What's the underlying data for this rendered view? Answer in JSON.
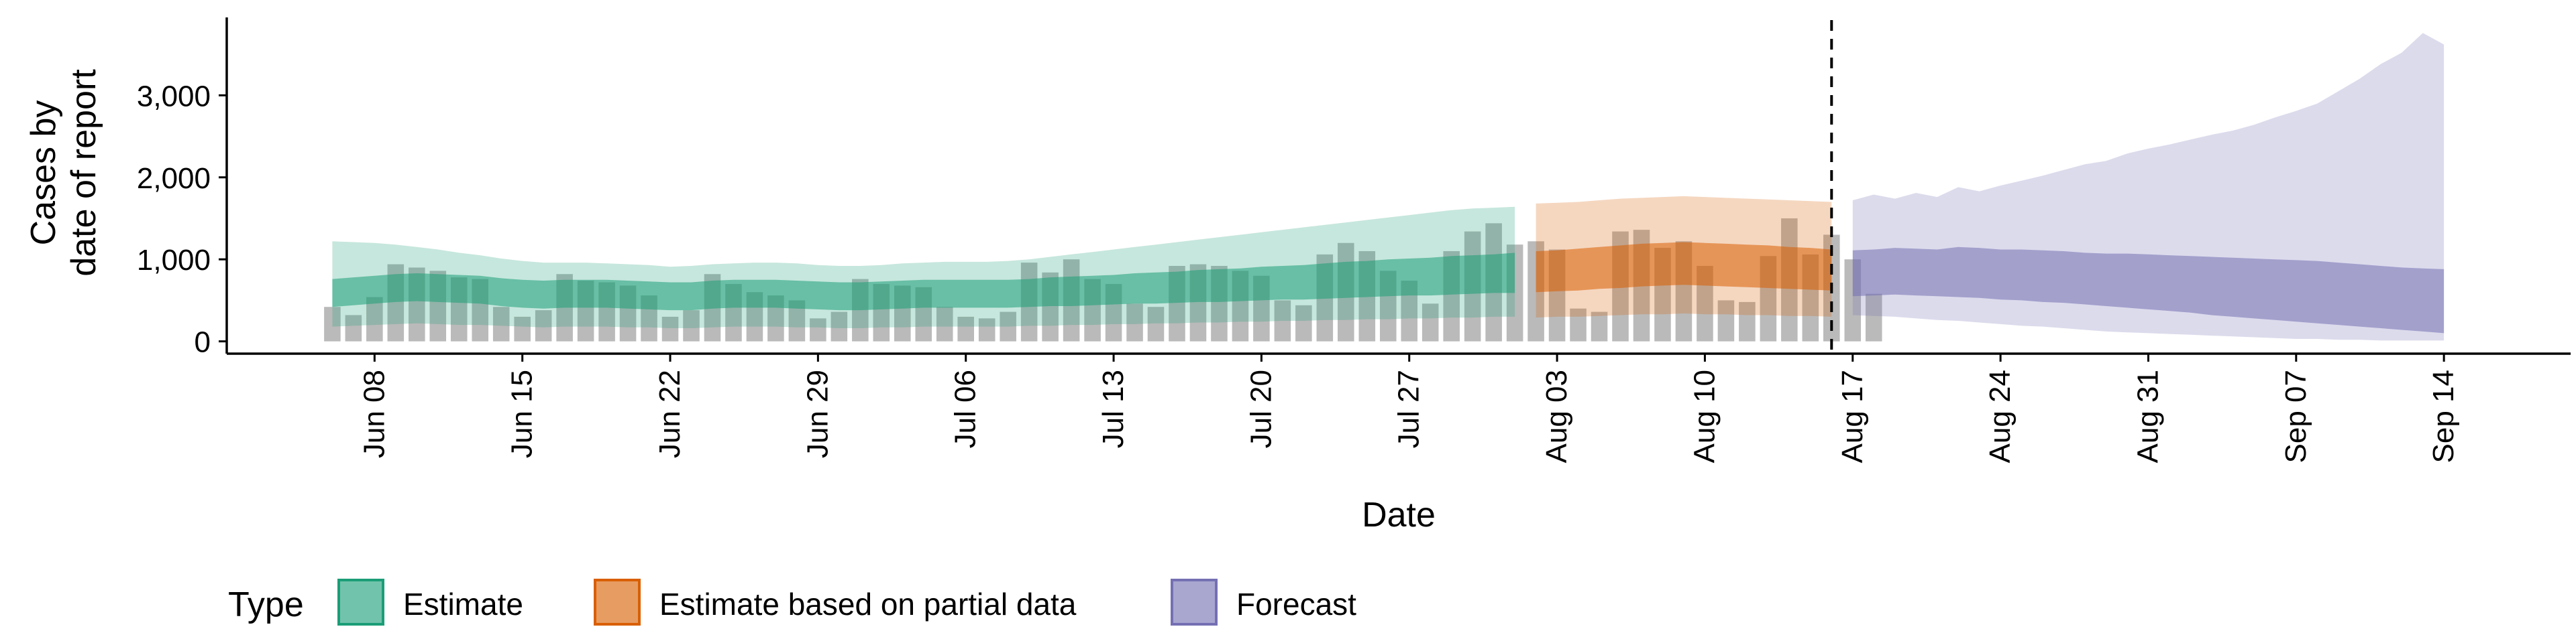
{
  "chart_data": {
    "type": "area",
    "title": "",
    "xlabel": "Date",
    "ylabel_lines": [
      "Cases by",
      "date of report"
    ],
    "ylim": [
      -150,
      3950
    ],
    "y_ticks": [
      {
        "value": 0,
        "label": "0"
      },
      {
        "value": 1000,
        "label": "1,000"
      },
      {
        "value": 2000,
        "label": "2,000"
      },
      {
        "value": 3000,
        "label": "3,000"
      }
    ],
    "x_domain": [
      "2020-06-01",
      "2020-09-20"
    ],
    "x_ticks": [
      {
        "date": "2020-06-08",
        "label": "Jun 08"
      },
      {
        "date": "2020-06-15",
        "label": "Jun 15"
      },
      {
        "date": "2020-06-22",
        "label": "Jun 22"
      },
      {
        "date": "2020-06-29",
        "label": "Jun 29"
      },
      {
        "date": "2020-07-06",
        "label": "Jul 06"
      },
      {
        "date": "2020-07-13",
        "label": "Jul 13"
      },
      {
        "date": "2020-07-20",
        "label": "Jul 20"
      },
      {
        "date": "2020-07-27",
        "label": "Jul 27"
      },
      {
        "date": "2020-08-03",
        "label": "Aug 03"
      },
      {
        "date": "2020-08-10",
        "label": "Aug 10"
      },
      {
        "date": "2020-08-17",
        "label": "Aug 17"
      },
      {
        "date": "2020-08-24",
        "label": "Aug 24"
      },
      {
        "date": "2020-08-31",
        "label": "Aug 31"
      },
      {
        "date": "2020-09-07",
        "label": "Sep 07"
      },
      {
        "date": "2020-09-14",
        "label": "Sep 14"
      }
    ],
    "forecast_start_line": "2020-08-16",
    "legend": {
      "title": "Type",
      "position": "bottom",
      "items": [
        {
          "label": "Estimate",
          "color": "#1B9E77"
        },
        {
          "label": "Estimate based on partial data",
          "color": "#D95F02"
        },
        {
          "label": "Forecast",
          "color": "#7570B3"
        }
      ]
    },
    "observed_bars": {
      "color": "#A0A0A0",
      "start_date": "2020-06-06",
      "values": [
        420,
        320,
        540,
        940,
        900,
        860,
        780,
        760,
        420,
        300,
        380,
        820,
        740,
        720,
        680,
        560,
        300,
        380,
        820,
        700,
        600,
        560,
        500,
        280,
        360,
        760,
        700,
        680,
        660,
        420,
        300,
        280,
        360,
        960,
        840,
        1000,
        760,
        700,
        460,
        420,
        920,
        940,
        920,
        860,
        800,
        500,
        440,
        1060,
        1200,
        1100,
        860,
        740,
        460,
        1100,
        1340,
        1440,
        1180,
        1220,
        1120,
        400,
        360,
        1340,
        1360,
        1140,
        1220,
        920,
        500,
        480,
        1040,
        1500,
        1060,
        1300,
        1000,
        580
      ]
    },
    "series": [
      {
        "name": "Estimate",
        "color": "#1B9E77",
        "start_date": "2020-06-06",
        "median": [
          580,
          600,
          620,
          640,
          650,
          640,
          630,
          620,
          590,
          570,
          560,
          570,
          570,
          570,
          560,
          550,
          540,
          540,
          560,
          570,
          570,
          570,
          560,
          550,
          540,
          540,
          550,
          560,
          570,
          570,
          570,
          570,
          570,
          580,
          590,
          600,
          610,
          620,
          630,
          640,
          650,
          660,
          670,
          680,
          690,
          700,
          710,
          720,
          740,
          750,
          760,
          770,
          780,
          790,
          800,
          810,
          820
        ],
        "inner_low": [
          420,
          440,
          460,
          480,
          490,
          480,
          470,
          460,
          430,
          410,
          400,
          410,
          410,
          410,
          400,
          390,
          380,
          380,
          400,
          410,
          410,
          410,
          400,
          390,
          380,
          380,
          390,
          400,
          410,
          410,
          410,
          410,
          410,
          420,
          430,
          430,
          440,
          450,
          460,
          460,
          470,
          480,
          480,
          490,
          500,
          510,
          510,
          520,
          530,
          540,
          550,
          560,
          560,
          570,
          580,
          590,
          590
        ],
        "inner_high": [
          760,
          780,
          800,
          820,
          830,
          820,
          810,
          800,
          770,
          750,
          740,
          750,
          750,
          750,
          740,
          730,
          720,
          720,
          740,
          750,
          750,
          750,
          740,
          730,
          720,
          720,
          730,
          740,
          750,
          750,
          750,
          750,
          750,
          760,
          780,
          790,
          800,
          810,
          830,
          840,
          850,
          870,
          880,
          890,
          910,
          920,
          930,
          950,
          970,
          980,
          1000,
          1010,
          1020,
          1040,
          1050,
          1060,
          1080
        ],
        "outer_low": [
          180,
          190,
          200,
          210,
          220,
          210,
          200,
          200,
          190,
          180,
          170,
          180,
          180,
          180,
          170,
          170,
          160,
          160,
          170,
          180,
          180,
          180,
          170,
          170,
          160,
          160,
          170,
          170,
          180,
          180,
          180,
          180,
          180,
          190,
          190,
          200,
          200,
          210,
          210,
          220,
          220,
          230,
          230,
          240,
          240,
          250,
          250,
          260,
          260,
          270,
          270,
          280,
          280,
          290,
          290,
          300,
          300
        ],
        "outer_high": [
          1220,
          1210,
          1200,
          1180,
          1150,
          1120,
          1080,
          1050,
          1010,
          980,
          960,
          960,
          960,
          950,
          940,
          930,
          910,
          920,
          940,
          950,
          960,
          960,
          950,
          930,
          920,
          920,
          930,
          950,
          960,
          970,
          970,
          970,
          980,
          1000,
          1030,
          1060,
          1090,
          1120,
          1150,
          1180,
          1210,
          1240,
          1270,
          1300,
          1330,
          1360,
          1390,
          1420,
          1450,
          1480,
          1510,
          1540,
          1570,
          1600,
          1620,
          1630,
          1640
        ]
      },
      {
        "name": "Estimate based on partial data",
        "color": "#D95F02",
        "start_date": "2020-08-02",
        "median": [
          840,
          850,
          860,
          880,
          900,
          920,
          930,
          940,
          930,
          920,
          910,
          900,
          880,
          870,
          860
        ],
        "inner_low": [
          600,
          610,
          620,
          640,
          650,
          670,
          680,
          690,
          680,
          670,
          660,
          650,
          640,
          630,
          620
        ],
        "inner_high": [
          1100,
          1110,
          1130,
          1150,
          1170,
          1190,
          1200,
          1210,
          1200,
          1190,
          1180,
          1170,
          1150,
          1140,
          1120
        ],
        "outer_low": [
          290,
          300,
          300,
          310,
          320,
          330,
          330,
          340,
          330,
          330,
          320,
          320,
          310,
          310,
          300
        ],
        "outer_high": [
          1680,
          1690,
          1700,
          1720,
          1740,
          1750,
          1760,
          1770,
          1760,
          1750,
          1740,
          1730,
          1720,
          1710,
          1700
        ]
      },
      {
        "name": "Forecast",
        "color": "#7570B3",
        "start_date": "2020-08-17",
        "median": [
          830,
          830,
          840,
          830,
          820,
          830,
          820,
          810,
          800,
          790,
          780,
          760,
          750,
          740,
          720,
          700,
          680,
          660,
          640,
          620,
          600,
          590,
          580,
          560,
          540,
          520,
          510,
          500,
          480
        ],
        "inner_low": [
          550,
          560,
          570,
          560,
          550,
          540,
          530,
          510,
          500,
          480,
          470,
          450,
          430,
          410,
          390,
          370,
          350,
          320,
          300,
          280,
          260,
          240,
          220,
          200,
          180,
          160,
          140,
          120,
          100
        ],
        "inner_high": [
          1110,
          1120,
          1140,
          1130,
          1120,
          1150,
          1140,
          1120,
          1120,
          1110,
          1100,
          1080,
          1070,
          1070,
          1060,
          1050,
          1040,
          1030,
          1020,
          1010,
          1000,
          990,
          980,
          960,
          940,
          920,
          900,
          890,
          880
        ],
        "outer_low": [
          320,
          310,
          300,
          280,
          260,
          250,
          230,
          210,
          190,
          180,
          160,
          140,
          120,
          110,
          100,
          90,
          80,
          70,
          60,
          50,
          40,
          30,
          30,
          20,
          20,
          10,
          10,
          10,
          10
        ],
        "outer_high": [
          1720,
          1790,
          1740,
          1810,
          1760,
          1880,
          1830,
          1900,
          1960,
          2020,
          2090,
          2160,
          2200,
          2290,
          2350,
          2400,
          2460,
          2520,
          2570,
          2640,
          2730,
          2810,
          2900,
          3050,
          3200,
          3380,
          3520,
          3760,
          3620
        ]
      }
    ]
  }
}
